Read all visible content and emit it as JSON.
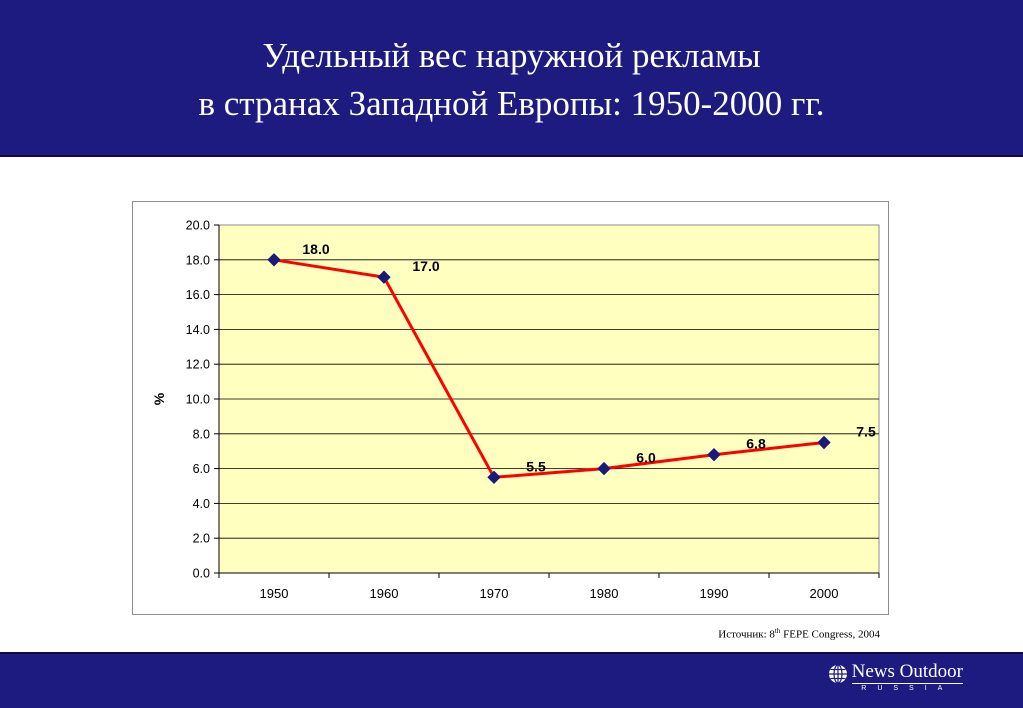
{
  "header": {
    "title_line1": "Удельный вес наружной рекламы",
    "title_line2": "в странах Западной Европы: 1950-2000 гг."
  },
  "source": {
    "prefix": "Источник: 8",
    "superscript": "th",
    "suffix": " FEPE Congress, 2004"
  },
  "footer": {
    "logo_name": "News Outdoor",
    "logo_sub": "RUSSIA",
    "logo_icon": "globe-icon"
  },
  "colors": {
    "header_bg": "#1d1a80",
    "plot_bg": "#ffffc0",
    "line": "#ff0000",
    "marker": "#1a1a7a"
  },
  "chart_data": {
    "type": "line",
    "title": "",
    "xlabel": "",
    "ylabel": "%",
    "x": [
      "1950",
      "1960",
      "1970",
      "1980",
      "1990",
      "2000"
    ],
    "series": [
      {
        "values": [
          18.0,
          17.0,
          5.5,
          6.0,
          6.8,
          7.5
        ]
      }
    ],
    "data_labels": [
      "18.0",
      "17.0",
      "5.5",
      "6.0",
      "6.8",
      "7.5"
    ],
    "yticks": [
      "0.0",
      "2.0",
      "4.0",
      "6.0",
      "8.0",
      "10.0",
      "12.0",
      "14.0",
      "16.0",
      "18.0",
      "20.0"
    ],
    "ylim": [
      0,
      20
    ],
    "grid": true,
    "legend": "none"
  }
}
